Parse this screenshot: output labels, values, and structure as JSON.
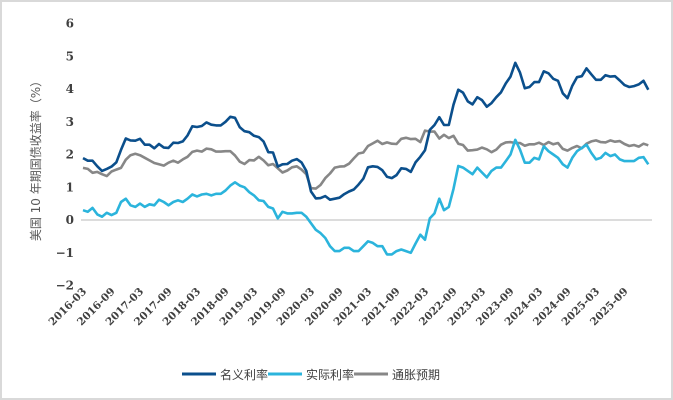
{
  "chart_data": {
    "type": "line",
    "title": "",
    "xlabel": "",
    "ylabel": "美国 10 年期国债收益率（%）",
    "ylim": [
      -2,
      6
    ],
    "yticks": [
      -2,
      -1,
      0,
      1,
      2,
      3,
      4,
      5,
      6
    ],
    "grid": false,
    "zero_line": true,
    "legend_position": "bottom",
    "x_start": "2016-03",
    "x_end": "2026-02",
    "x_frequency": "monthly",
    "xtick_labels": [
      "2016-03",
      "2016-09",
      "2017-03",
      "2017-09",
      "2018-03",
      "2018-09",
      "2019-03",
      "2019-09",
      "2020-03",
      "2020-09",
      "2021-03",
      "2021-09",
      "2022-03",
      "2022-09",
      "2023-03",
      "2023-09",
      "2024-03",
      "2024-09",
      "2025-03",
      "2025-09"
    ],
    "series": [
      {
        "name": "名义利率",
        "color": "#0b4f8c",
        "values": [
          1.89,
          1.81,
          1.81,
          1.64,
          1.5,
          1.56,
          1.63,
          1.76,
          2.14,
          2.49,
          2.43,
          2.42,
          2.48,
          2.3,
          2.3,
          2.19,
          2.32,
          2.21,
          2.2,
          2.36,
          2.35,
          2.4,
          2.58,
          2.86,
          2.84,
          2.87,
          2.98,
          2.91,
          2.89,
          2.89,
          3.0,
          3.15,
          3.12,
          2.83,
          2.71,
          2.68,
          2.57,
          2.53,
          2.4,
          2.07,
          2.06,
          1.63,
          1.7,
          1.71,
          1.81,
          1.86,
          1.76,
          1.5,
          0.87,
          0.66,
          0.67,
          0.73,
          0.62,
          0.65,
          0.68,
          0.79,
          0.87,
          0.93,
          1.08,
          1.26,
          1.61,
          1.64,
          1.62,
          1.52,
          1.32,
          1.28,
          1.37,
          1.58,
          1.56,
          1.47,
          1.76,
          1.93,
          2.13,
          2.75,
          2.9,
          3.14,
          2.9,
          2.9,
          3.52,
          3.98,
          3.89,
          3.62,
          3.53,
          3.75,
          3.66,
          3.46,
          3.57,
          3.75,
          3.9,
          4.17,
          4.38,
          4.8,
          4.5,
          4.02,
          4.06,
          4.21,
          4.21,
          4.54,
          4.48,
          4.31,
          4.25,
          3.87,
          3.72,
          4.1,
          4.36,
          4.39,
          4.63,
          4.45,
          4.28,
          4.28,
          4.42,
          4.38,
          4.39,
          4.26,
          4.12,
          4.06,
          4.09,
          4.14,
          4.25,
          3.98
        ]
      },
      {
        "name": "实际利率",
        "color": "#2bb4dc",
        "values": [
          0.3,
          0.25,
          0.37,
          0.17,
          0.1,
          0.22,
          0.15,
          0.22,
          0.55,
          0.65,
          0.45,
          0.4,
          0.5,
          0.4,
          0.48,
          0.45,
          0.62,
          0.55,
          0.45,
          0.55,
          0.6,
          0.55,
          0.65,
          0.78,
          0.72,
          0.78,
          0.8,
          0.75,
          0.8,
          0.8,
          0.9,
          1.05,
          1.15,
          1.05,
          1.0,
          0.85,
          0.75,
          0.6,
          0.58,
          0.4,
          0.35,
          0.05,
          0.25,
          0.2,
          0.2,
          0.22,
          0.22,
          0.1,
          -0.1,
          -0.3,
          -0.4,
          -0.55,
          -0.8,
          -0.95,
          -0.95,
          -0.85,
          -0.85,
          -0.95,
          -0.95,
          -0.8,
          -0.65,
          -0.7,
          -0.8,
          -0.8,
          -1.05,
          -1.05,
          -0.95,
          -0.9,
          -0.95,
          -1.0,
          -0.72,
          -0.45,
          -0.6,
          0.05,
          0.2,
          0.65,
          0.3,
          0.4,
          0.95,
          1.65,
          1.6,
          1.5,
          1.4,
          1.6,
          1.45,
          1.3,
          1.5,
          1.6,
          1.6,
          1.8,
          2.0,
          2.45,
          2.15,
          1.75,
          1.75,
          1.9,
          1.85,
          2.25,
          2.1,
          2.0,
          1.9,
          1.7,
          1.6,
          1.9,
          2.1,
          2.2,
          2.3,
          2.05,
          1.85,
          1.9,
          2.05,
          1.95,
          2.0,
          1.85,
          1.8,
          1.8,
          1.8,
          1.9,
          1.92,
          1.7
        ]
      },
      {
        "name": "通胀预期",
        "color": "#878787",
        "values": [
          1.59,
          1.56,
          1.44,
          1.47,
          1.4,
          1.34,
          1.48,
          1.54,
          1.59,
          1.84,
          1.98,
          2.02,
          1.98,
          1.9,
          1.82,
          1.74,
          1.7,
          1.66,
          1.75,
          1.81,
          1.75,
          1.85,
          1.93,
          2.08,
          2.12,
          2.09,
          2.18,
          2.16,
          2.09,
          2.09,
          2.1,
          2.1,
          1.97,
          1.78,
          1.71,
          1.83,
          1.82,
          1.93,
          1.82,
          1.67,
          1.71,
          1.58,
          1.45,
          1.51,
          1.61,
          1.64,
          1.54,
          1.4,
          0.97,
          0.96,
          1.07,
          1.28,
          1.42,
          1.6,
          1.63,
          1.64,
          1.72,
          1.88,
          2.03,
          2.06,
          2.26,
          2.34,
          2.42,
          2.32,
          2.37,
          2.33,
          2.32,
          2.48,
          2.51,
          2.47,
          2.48,
          2.38,
          2.73,
          2.7,
          2.7,
          2.49,
          2.6,
          2.5,
          2.57,
          2.33,
          2.29,
          2.12,
          2.13,
          2.15,
          2.21,
          2.16,
          2.07,
          2.15,
          2.3,
          2.37,
          2.38,
          2.35,
          2.35,
          2.27,
          2.31,
          2.31,
          2.36,
          2.29,
          2.38,
          2.31,
          2.35,
          2.17,
          2.12,
          2.2,
          2.26,
          2.19,
          2.33,
          2.4,
          2.43,
          2.38,
          2.37,
          2.43,
          2.39,
          2.41,
          2.32,
          2.26,
          2.29,
          2.24,
          2.33,
          2.28
        ]
      }
    ]
  }
}
